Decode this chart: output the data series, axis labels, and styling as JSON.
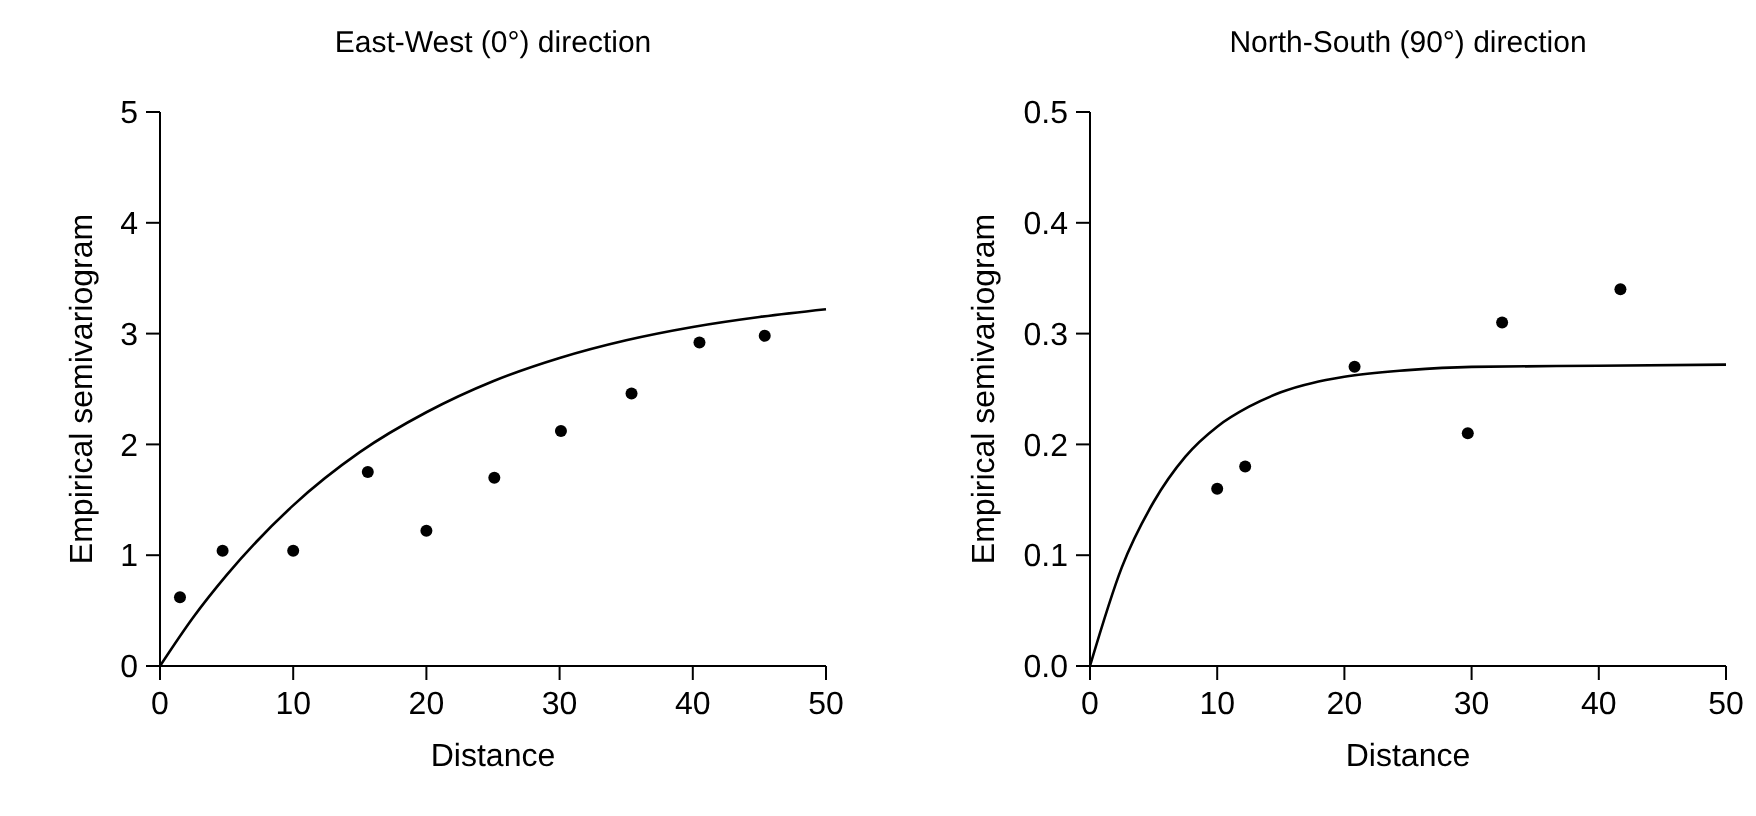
{
  "chart_data": [
    {
      "type": "scatter",
      "title": "East-West (0°) direction",
      "xlabel": "Distance",
      "ylabel": "Empirical semivariogram",
      "xlim": [
        0,
        50
      ],
      "ylim": [
        0,
        5
      ],
      "xticks": [
        0,
        10,
        20,
        30,
        40,
        50
      ],
      "yticks": [
        0,
        1,
        2,
        3,
        4,
        5
      ],
      "grid": false,
      "series": [
        {
          "color": "#000000",
          "marker": "circle",
          "x": [
            1.5,
            4.7,
            10,
            15.6,
            20,
            25.1,
            30.1,
            35.4,
            40.5,
            45.4
          ],
          "values": [
            0.62,
            1.04,
            1.04,
            1.75,
            1.22,
            1.7,
            2.12,
            2.46,
            2.92,
            2.98
          ]
        },
        {
          "type": "line",
          "color": "#000000",
          "marker": "none",
          "line_style": "solid",
          "x": [
            0,
            2.5,
            5,
            10,
            15,
            20,
            25,
            30,
            35,
            40,
            45,
            50
          ],
          "values": [
            0,
            0.44,
            0.82,
            1.45,
            1.93,
            2.29,
            2.57,
            2.78,
            2.94,
            3.06,
            3.15,
            3.22
          ]
        }
      ]
    },
    {
      "type": "scatter",
      "title": "North-South (90°) direction",
      "xlabel": "Distance",
      "ylabel": "Empirical semivariogram",
      "xlim": [
        0,
        50
      ],
      "ylim": [
        0,
        0.5
      ],
      "xticks": [
        0,
        10,
        20,
        30,
        40,
        50
      ],
      "yticks": [
        {
          "value": 0,
          "label": "0.0"
        },
        0.1,
        0.2,
        0.3,
        0.4,
        0.5
      ],
      "grid": false,
      "series": [
        {
          "color": "#000000",
          "marker": "circle",
          "x": [
            10,
            12.2,
            20.8,
            29.7,
            32.4,
            41.7
          ],
          "values": [
            0.16,
            0.18,
            0.27,
            0.21,
            0.31,
            0.34
          ]
        },
        {
          "type": "line",
          "color": "#000000",
          "marker": "none",
          "line_style": "solid",
          "x": [
            0,
            2.5,
            5,
            7.5,
            10,
            12.5,
            15,
            20,
            25,
            30,
            40,
            50
          ],
          "values": [
            0,
            0.089,
            0.148,
            0.189,
            0.216,
            0.234,
            0.247,
            0.261,
            0.267,
            0.27,
            0.271,
            0.272
          ]
        }
      ]
    }
  ]
}
